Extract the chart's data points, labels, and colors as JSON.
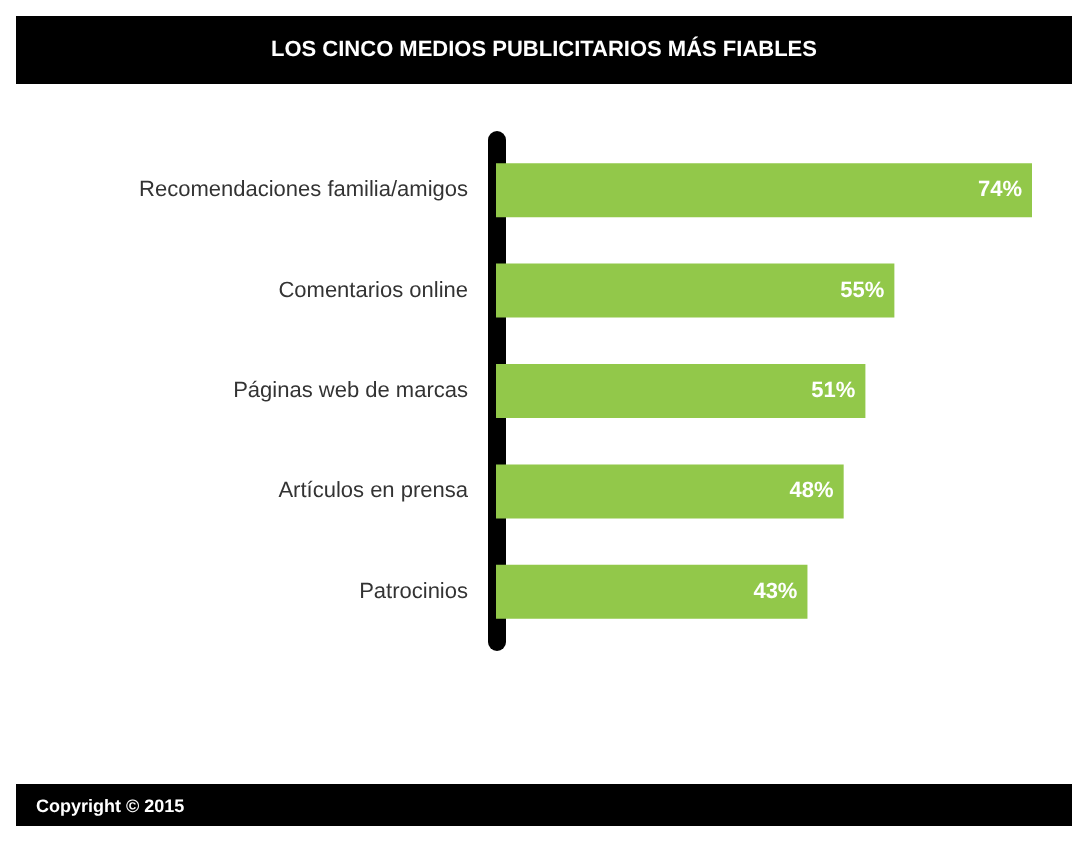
{
  "chart_data": {
    "type": "bar",
    "orientation": "horizontal",
    "title": "LOS CINCO MEDIOS PUBLICITARIOS MÁS FIABLES",
    "categories": [
      "Recomendaciones familia/amigos",
      "Comentarios online",
      "Páginas web de marcas",
      "Artículos en prensa",
      "Patrocinios"
    ],
    "values": [
      74,
      55,
      51,
      48,
      43
    ],
    "value_labels": [
      "74%",
      "55%",
      "51%",
      "48%",
      "43%"
    ],
    "color": "#92c84a",
    "annotations": [
      "Copyright © 2015"
    ]
  }
}
